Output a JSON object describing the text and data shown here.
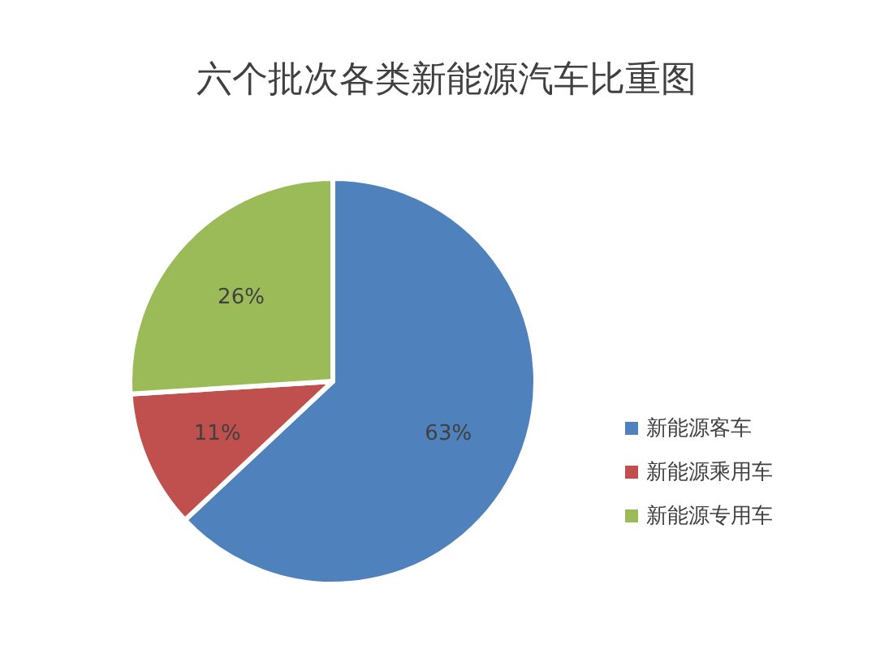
{
  "chart_data": {
    "type": "pie",
    "title": "六个批次各类新能源汽车比重图",
    "categories": [
      "新能源客车",
      "新能源乘用车",
      "新能源专用车"
    ],
    "values": [
      63,
      11,
      26
    ],
    "value_labels": [
      "63%",
      "11%",
      "26%"
    ],
    "colors": [
      "#4f81bd",
      "#c0504d",
      "#9bbb59"
    ],
    "legend": "right"
  }
}
